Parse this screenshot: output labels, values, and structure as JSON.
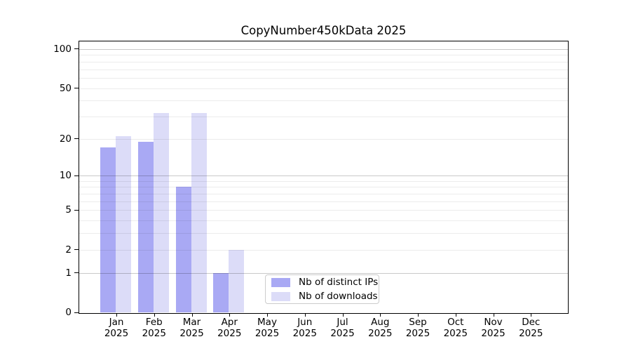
{
  "figure": {
    "title": "CopyNumber450kData 2025"
  },
  "chart_data": {
    "type": "bar",
    "title": "CopyNumber450kData 2025",
    "categories": [
      "Jan 2025",
      "Feb 2025",
      "Mar 2025",
      "Apr 2025",
      "May 2025",
      "Jun 2025",
      "Jul 2025",
      "Aug 2025",
      "Sep 2025",
      "Oct 2025",
      "Nov 2025",
      "Dec 2025"
    ],
    "x_axis": {
      "months": [
        "Jan",
        "Feb",
        "Mar",
        "Apr",
        "May",
        "Jun",
        "Jul",
        "Aug",
        "Sep",
        "Oct",
        "Nov",
        "Dec"
      ],
      "year": "2025"
    },
    "series": [
      {
        "name": "Nb of distinct IPs",
        "color": "#a9a9f4",
        "values": [
          17,
          19,
          8,
          1,
          0,
          0,
          0,
          0,
          0,
          0,
          0,
          0
        ]
      },
      {
        "name": "Nb of downloads",
        "color": "#dcdcf8",
        "values": [
          21,
          32,
          32,
          2,
          0,
          0,
          0,
          0,
          0,
          0,
          0,
          0
        ]
      }
    ],
    "y_axis": {
      "scale": "log10(value+1)",
      "ticks": [
        0,
        1,
        2,
        5,
        10,
        20,
        50,
        100
      ],
      "major_gridlines": [
        1,
        10,
        100
      ],
      "minor_gridlines": [
        2,
        3,
        4,
        5,
        6,
        7,
        8,
        9,
        20,
        30,
        40,
        50,
        60,
        70,
        80,
        90
      ],
      "ylim": [
        0,
        116
      ]
    },
    "grid": true,
    "legend_position": "lower center",
    "legend": [
      {
        "label": "Nb of distinct IPs",
        "color": "#a9a9f4"
      },
      {
        "label": "Nb of downloads",
        "color": "#dcdcf8"
      }
    ]
  }
}
